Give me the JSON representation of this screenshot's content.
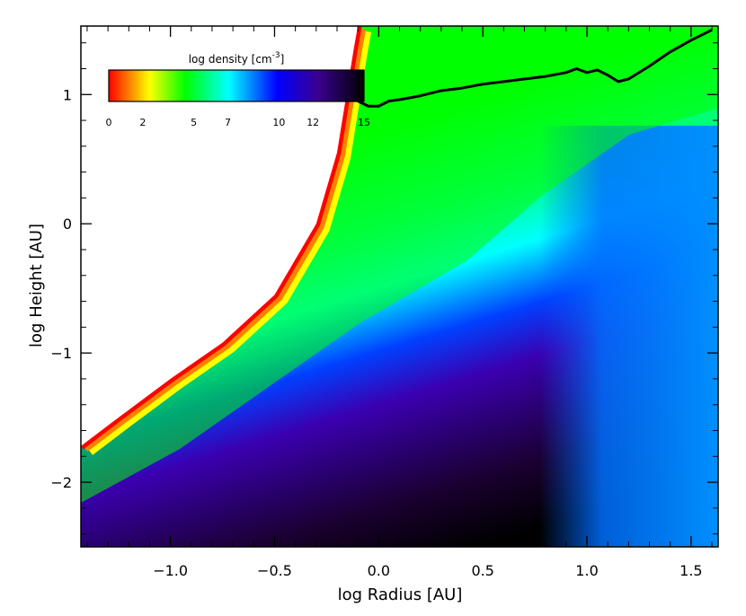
{
  "chart_data": {
    "type": "heatmap",
    "title": "",
    "xlabel": "log Radius [AU]",
    "ylabel": "log Height [AU]",
    "xlim": [
      -1.43,
      1.63
    ],
    "ylim": [
      -2.5,
      1.53
    ],
    "x_ticks": [
      -1.0,
      -0.5,
      0.0,
      0.5,
      1.0,
      1.5
    ],
    "x_tick_labels": [
      "−1.0",
      "−0.5",
      "0.0",
      "0.5",
      "1.0",
      "1.5"
    ],
    "y_ticks": [
      -2,
      -1,
      0,
      1
    ],
    "y_tick_labels": [
      "−2",
      "−1",
      "0",
      "1"
    ],
    "colorbar": {
      "title": "log density [cm",
      "title_superscript": "-3",
      "title_close": "]",
      "range": [
        0,
        15
      ],
      "ticks": [
        0,
        2,
        5,
        7,
        10,
        12,
        15
      ],
      "tick_labels": [
        "0",
        "2",
        "5",
        "7",
        "10",
        "12",
        "15"
      ],
      "colors": [
        "#ff0000",
        "#ff8000",
        "#ffff00",
        "#00ff00",
        "#00ffff",
        "#0000ff",
        "#3a0090",
        "#000000"
      ]
    },
    "regions": [
      {
        "name": "empty",
        "color": "#ffffff",
        "description": "no data, upper-left"
      },
      {
        "name": "surface edge",
        "color": "#ff0000"
      },
      {
        "name": "atmosphere",
        "color": "#00ff00"
      },
      {
        "name": "midplane",
        "color": "#000000"
      }
    ],
    "inner_edge_boundary": {
      "x": [
        -1.43,
        -1.25,
        -1.0,
        -0.75,
        -0.5,
        -0.3,
        -0.2,
        -0.15,
        -0.12,
        -0.1
      ],
      "y": [
        -1.72,
        -1.5,
        -1.2,
        -0.92,
        -0.55,
        0.0,
        0.55,
        1.05,
        1.35,
        1.53
      ]
    },
    "overlay_line": {
      "color": "#000000",
      "x": [
        -0.1,
        -0.05,
        0.0,
        0.05,
        0.1,
        0.2,
        0.3,
        0.4,
        0.5,
        0.6,
        0.7,
        0.8,
        0.9,
        0.95,
        1.0,
        1.05,
        1.1,
        1.15,
        1.2,
        1.3,
        1.4,
        1.5,
        1.6
      ],
      "y": [
        0.95,
        0.91,
        0.91,
        0.95,
        0.96,
        0.99,
        1.03,
        1.05,
        1.08,
        1.1,
        1.12,
        1.14,
        1.17,
        1.2,
        1.17,
        1.19,
        1.15,
        1.1,
        1.12,
        1.22,
        1.33,
        1.42,
        1.5
      ]
    }
  }
}
